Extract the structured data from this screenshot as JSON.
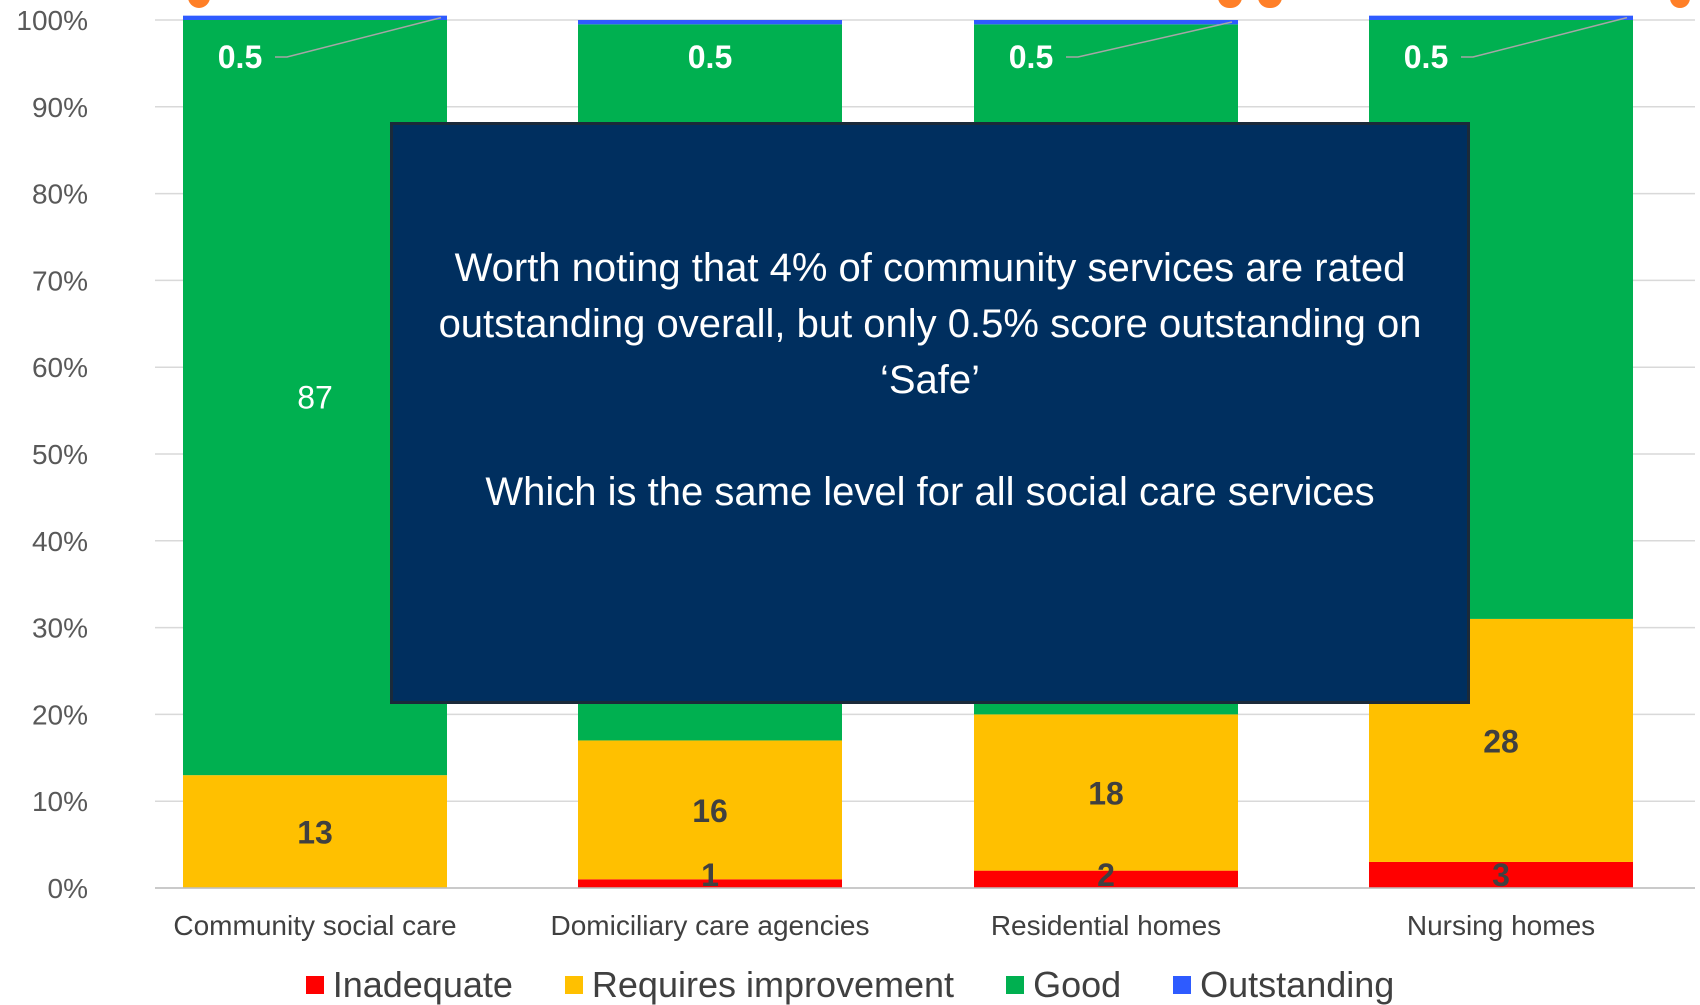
{
  "chart_data": {
    "type": "bar",
    "stacked": true,
    "percent_stacked": true,
    "categories": [
      "Community social care",
      "Domiciliary care agencies",
      "Residential homes",
      "Nursing homes"
    ],
    "series": [
      {
        "name": "Inadequate",
        "color": "#ff0000",
        "values": [
          0,
          1,
          2,
          3
        ],
        "labels": [
          "",
          "1",
          "2",
          "3"
        ]
      },
      {
        "name": "Requires improvement",
        "color": "#ffc000",
        "values": [
          13,
          16,
          18,
          28
        ],
        "labels": [
          "13",
          "16",
          "18",
          "28"
        ]
      },
      {
        "name": "Good",
        "color": "#00b050",
        "values": [
          87,
          82.5,
          79.5,
          69
        ],
        "labels": [
          "87",
          "",
          "",
          "69"
        ]
      },
      {
        "name": "Outstanding",
        "color": "#2e5bff",
        "values": [
          0.5,
          0.5,
          0.5,
          0.5
        ],
        "labels": [
          "0.5",
          "0.5",
          "0.5",
          "0.5"
        ]
      }
    ],
    "ylim": [
      0,
      100
    ],
    "yticks": [
      "0%",
      "10%",
      "20%",
      "30%",
      "40%",
      "50%",
      "60%",
      "70%",
      "80%",
      "90%",
      "100%"
    ],
    "title": "",
    "xlabel": "",
    "ylabel": "",
    "grid": true,
    "legend_position": "bottom"
  },
  "callout": {
    "line1": "Worth noting that 4% of community services are rated outstanding overall, but only 0.5% score outstanding on ‘Safe’",
    "line2": "Which is the same level for all social care services"
  },
  "colors": {
    "title_accent": "#ff7f27",
    "callout_bg": "#002f5f",
    "gridline": "#d9d9d9"
  }
}
